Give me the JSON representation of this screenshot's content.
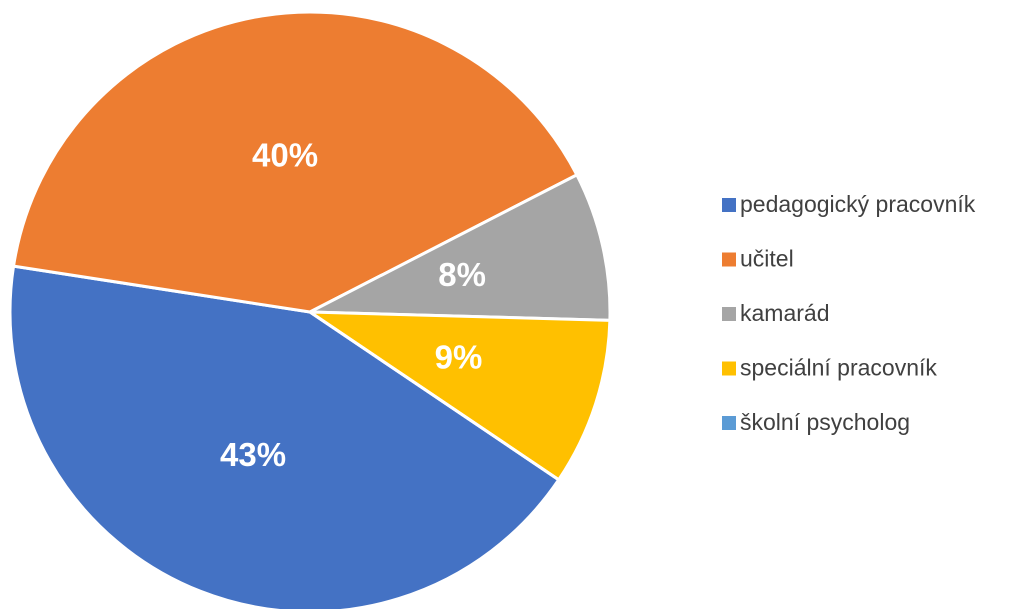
{
  "chart_data": {
    "type": "pie",
    "categories": [
      "pedagogický pracovník",
      "učitel",
      "kamarád",
      "speciální pracovník",
      "školní psycholog"
    ],
    "values": [
      43,
      40,
      8,
      9,
      0
    ],
    "value_labels": [
      "43%",
      "40%",
      "8%",
      "9%",
      null
    ],
    "colors": [
      "#4472c4",
      "#ed7d31",
      "#a5a5a5",
      "#ffc000",
      "#5b9bd5"
    ],
    "legend": "right"
  }
}
